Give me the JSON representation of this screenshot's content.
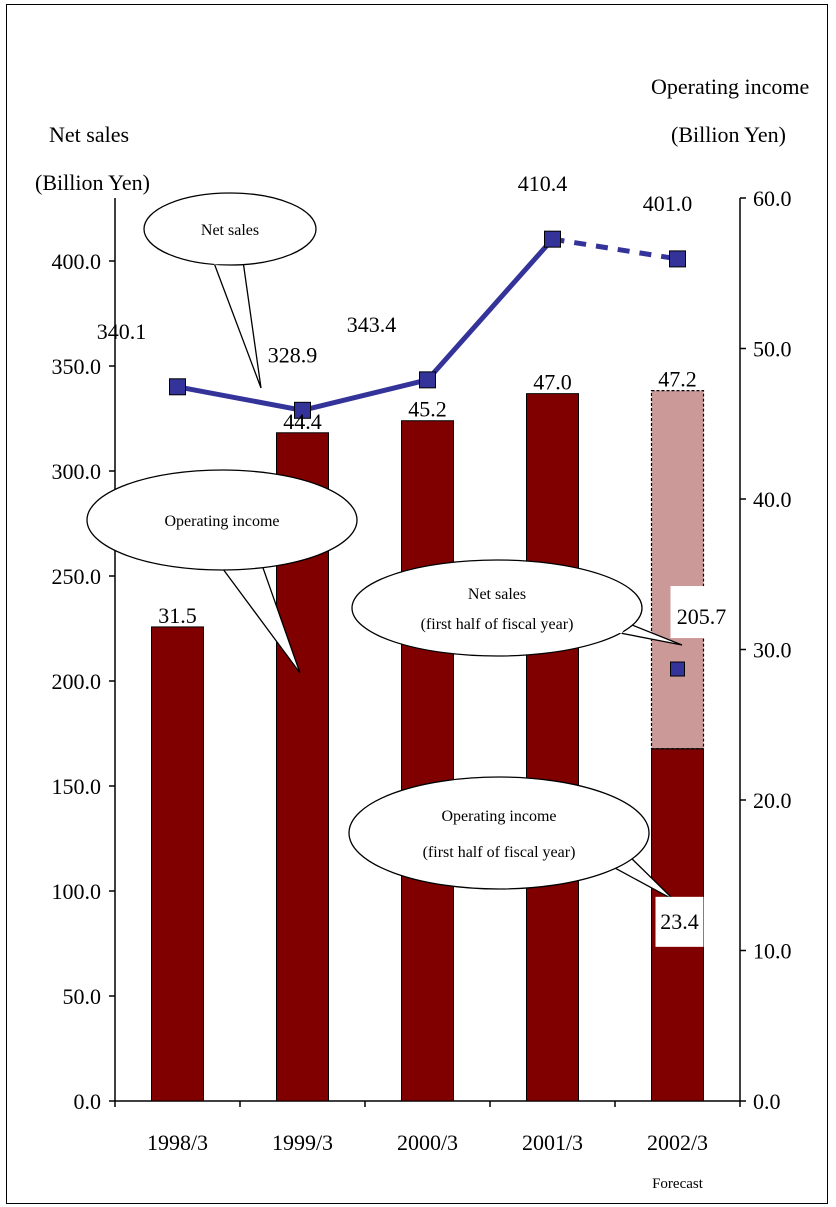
{
  "chart_data": {
    "type": "bar",
    "categories": [
      "1998/3",
      "1999/3",
      "2000/3",
      "2001/3",
      "2002/3"
    ],
    "category_note": "Forecast",
    "left_axis": {
      "title_line1": "Net sales",
      "title_line2": "(Billion Yen)",
      "ylim": [
        0,
        430
      ],
      "ticks": [
        "0.0",
        "50.0",
        "100.0",
        "150.0",
        "200.0",
        "250.0",
        "300.0",
        "350.0",
        "400.0"
      ]
    },
    "right_axis": {
      "title_line1": "Operating income",
      "title_line2": "(Billion Yen)",
      "ylim": [
        0,
        60
      ],
      "ticks": [
        "0.0",
        "10.0",
        "20.0",
        "30.0",
        "40.0",
        "50.0",
        "60.0"
      ]
    },
    "series": [
      {
        "name": "Operating income",
        "type": "bar",
        "axis": "right",
        "color": "#800000",
        "values": [
          31.5,
          44.4,
          45.2,
          47.0,
          47.2
        ],
        "labels": [
          "31.5",
          "44.4",
          "45.2",
          "47.0",
          "47.2"
        ]
      },
      {
        "name": "Operating income (first half of fiscal year)",
        "type": "bar",
        "axis": "right",
        "color": "#800000",
        "category": "2002/3",
        "value": 23.4,
        "label": "23.4"
      },
      {
        "name": "Net sales",
        "type": "line",
        "axis": "left",
        "color": "#333399",
        "values": [
          340.1,
          328.9,
          343.4,
          410.4,
          401.0
        ],
        "labels": [
          "340.1",
          "328.9",
          "343.4",
          "410.4",
          "401.0"
        ]
      },
      {
        "name": "Net sales (first half of fiscal year)",
        "type": "point",
        "axis": "left",
        "color": "#333399",
        "category": "2002/3",
        "value": 205.7,
        "label": "205.7"
      }
    ],
    "forecast_fill_color": "#cc9999",
    "callouts": [
      {
        "id": "net-sales",
        "lines": [
          "Net sales"
        ]
      },
      {
        "id": "operating-income",
        "lines": [
          "Operating income"
        ]
      },
      {
        "id": "net-sales-half",
        "lines": [
          "Net sales",
          "(first half of fiscal year)"
        ]
      },
      {
        "id": "operating-income-half",
        "lines": [
          "Operating income",
          "(first half of fiscal year)"
        ]
      }
    ],
    "grid": false,
    "legend": "none"
  }
}
